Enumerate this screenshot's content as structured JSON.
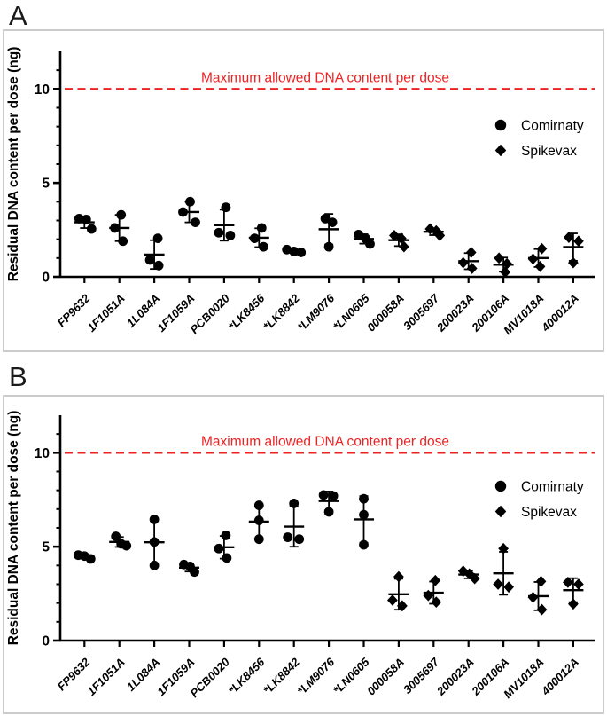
{
  "figure": {
    "panel_a_letter": "A",
    "panel_b_letter": "B"
  },
  "colors": {
    "marker": "#000000",
    "axis": "#000000",
    "threshold_red": "#ED2224",
    "frame_border": "#CBCBCB"
  },
  "chart_data": [
    {
      "type": "scatter",
      "panel": "A",
      "ylabel": "Residual DNA content per dose (ng)",
      "ylim": [
        0,
        12
      ],
      "yticks_major": [
        0,
        5,
        10
      ],
      "ytick_labels": [
        "0",
        "5",
        "10"
      ],
      "yticks_minor": [
        1,
        2,
        3,
        4,
        6,
        7,
        8,
        9,
        11
      ],
      "grid": "off",
      "error_bars": "mean ± SD with caps",
      "threshold": {
        "value": 10,
        "label": "Maximum allowed DNA content per dose"
      },
      "legend": [
        {
          "name": "Comirnaty",
          "marker": "circle"
        },
        {
          "name": "Spikevax",
          "marker": "diamond"
        }
      ],
      "legend_position": "upper right",
      "categories": [
        "FP9632",
        "1F1051A",
        "1L084A",
        "1F1059A",
        "PCB0020",
        "*LK8456",
        "*LK8842",
        "*LM9076",
        "*LN0605",
        "000058A",
        "3005697",
        "200023A",
        "200106A",
        "MV1018A",
        "400012A"
      ],
      "groups": [
        {
          "lot": "FP9632",
          "product": "Comirnaty",
          "values": [
            3.1,
            3.05,
            2.55
          ],
          "dx": [
            -6,
            2,
            8
          ]
        },
        {
          "lot": "1F1051A",
          "product": "Comirnaty",
          "values": [
            3.3,
            2.6,
            1.9
          ],
          "dx": [
            2,
            -5,
            4
          ]
        },
        {
          "lot": "1L084A",
          "product": "Comirnaty",
          "values": [
            2.05,
            0.9,
            0.6
          ],
          "dx": [
            4,
            -5,
            5
          ]
        },
        {
          "lot": "1F1059A",
          "product": "Comirnaty",
          "values": [
            4.0,
            3.45,
            2.9
          ],
          "dx": [
            1,
            -7,
            7
          ]
        },
        {
          "lot": "PCB0020",
          "product": "Comirnaty",
          "values": [
            3.7,
            2.35,
            2.2
          ],
          "dx": [
            2,
            -6,
            7
          ]
        },
        {
          "lot": "*LK8456",
          "product": "Comirnaty",
          "values": [
            2.6,
            2.05,
            1.6
          ],
          "dx": [
            3,
            -5,
            5
          ]
        },
        {
          "lot": "*LK8842",
          "product": "Comirnaty",
          "values": [
            1.45,
            1.35,
            1.3
          ],
          "dx": [
            -8,
            0,
            8
          ]
        },
        {
          "lot": "*LM9076",
          "product": "Comirnaty",
          "values": [
            3.1,
            2.9,
            1.6
          ],
          "dx": [
            -4,
            4,
            0
          ]
        },
        {
          "lot": "*LN0605",
          "product": "Comirnaty",
          "values": [
            2.25,
            2.05,
            1.75
          ],
          "dx": [
            -6,
            2,
            7
          ]
        },
        {
          "lot": "000058A",
          "product": "Spikevax",
          "values": [
            2.2,
            2.05,
            1.6
          ],
          "dx": [
            -5,
            3,
            6
          ]
        },
        {
          "lot": "3005697",
          "product": "Spikevax",
          "values": [
            2.55,
            2.45,
            2.2
          ],
          "dx": [
            -4,
            3,
            7
          ]
        },
        {
          "lot": "200023A",
          "product": "Spikevax",
          "values": [
            1.3,
            0.75,
            0.45
          ],
          "dx": [
            3,
            -6,
            4
          ]
        },
        {
          "lot": "200106A",
          "product": "Spikevax",
          "values": [
            1.0,
            0.7,
            0.25
          ],
          "dx": [
            -5,
            4,
            2
          ]
        },
        {
          "lot": "MV1018A",
          "product": "Spikevax",
          "values": [
            1.5,
            0.95,
            0.55
          ],
          "dx": [
            4,
            -6,
            2
          ]
        },
        {
          "lot": "400012A",
          "product": "Spikevax",
          "values": [
            2.1,
            1.9,
            0.75
          ],
          "dx": [
            -5,
            6,
            0
          ]
        }
      ]
    },
    {
      "type": "scatter",
      "panel": "B",
      "ylabel": "Residual DNA content per dose (ng)",
      "ylim": [
        0,
        12
      ],
      "yticks_major": [
        0,
        5,
        10
      ],
      "ytick_labels": [
        "0",
        "5",
        "10"
      ],
      "yticks_minor": [
        1,
        2,
        3,
        4,
        6,
        7,
        8,
        9,
        11
      ],
      "grid": "off",
      "error_bars": "mean ± SD with caps",
      "threshold": {
        "value": 10,
        "label": "Maximum allowed DNA content per dose"
      },
      "legend": [
        {
          "name": "Comirnaty",
          "marker": "circle"
        },
        {
          "name": "Spikevax",
          "marker": "diamond"
        }
      ],
      "legend_position": "upper right",
      "categories": [
        "FP9632",
        "1F1051A",
        "1L084A",
        "1F1059A",
        "PCB0020",
        "*LK8456",
        "*LK8842",
        "*LM9076",
        "*LN0605",
        "000058A",
        "3005697",
        "200023A",
        "200106A",
        "MV1018A",
        "400012A"
      ],
      "groups": [
        {
          "lot": "FP9632",
          "product": "Comirnaty",
          "values": [
            4.55,
            4.5,
            4.35
          ],
          "dx": [
            -7,
            0,
            7
          ]
        },
        {
          "lot": "1F1051A",
          "product": "Comirnaty",
          "values": [
            5.55,
            5.15,
            5.05
          ],
          "dx": [
            -4,
            2,
            8
          ]
        },
        {
          "lot": "1L084A",
          "product": "Comirnaty",
          "values": [
            6.45,
            5.25,
            4.0
          ],
          "dx": [
            0,
            0,
            0
          ]
        },
        {
          "lot": "1F1059A",
          "product": "Comirnaty",
          "values": [
            4.05,
            3.95,
            3.65
          ],
          "dx": [
            -6,
            1,
            6
          ]
        },
        {
          "lot": "PCB0020",
          "product": "Comirnaty",
          "values": [
            5.6,
            4.9,
            4.4
          ],
          "dx": [
            2,
            -6,
            3
          ]
        },
        {
          "lot": "*LK8456",
          "product": "Comirnaty",
          "values": [
            7.2,
            6.4,
            5.4
          ],
          "dx": [
            0,
            0,
            0
          ]
        },
        {
          "lot": "*LK8842",
          "product": "Comirnaty",
          "values": [
            7.3,
            5.5,
            5.4
          ],
          "dx": [
            0,
            -7,
            6
          ]
        },
        {
          "lot": "*LM9076",
          "product": "Comirnaty",
          "values": [
            7.75,
            7.7,
            6.85
          ],
          "dx": [
            -6,
            5,
            0
          ]
        },
        {
          "lot": "*LN0605",
          "product": "Comirnaty",
          "values": [
            7.55,
            6.7,
            5.1
          ],
          "dx": [
            0,
            0,
            0
          ]
        },
        {
          "lot": "000058A",
          "product": "Spikevax",
          "values": [
            3.4,
            2.15,
            1.85
          ],
          "dx": [
            0,
            -7,
            4
          ]
        },
        {
          "lot": "3005697",
          "product": "Spikevax",
          "values": [
            3.2,
            2.4,
            2.05
          ],
          "dx": [
            2,
            -6,
            3
          ]
        },
        {
          "lot": "200023A",
          "product": "Spikevax",
          "values": [
            3.7,
            3.55,
            3.3
          ],
          "dx": [
            -6,
            1,
            7
          ]
        },
        {
          "lot": "200106A",
          "product": "Spikevax",
          "values": [
            4.9,
            3.0,
            2.85
          ],
          "dx": [
            0,
            -6,
            6
          ]
        },
        {
          "lot": "MV1018A",
          "product": "Spikevax",
          "values": [
            3.15,
            2.3,
            1.65
          ],
          "dx": [
            3,
            -6,
            4
          ]
        },
        {
          "lot": "400012A",
          "product": "Spikevax",
          "values": [
            3.1,
            3.0,
            1.95
          ],
          "dx": [
            -6,
            6,
            0
          ]
        }
      ]
    }
  ]
}
